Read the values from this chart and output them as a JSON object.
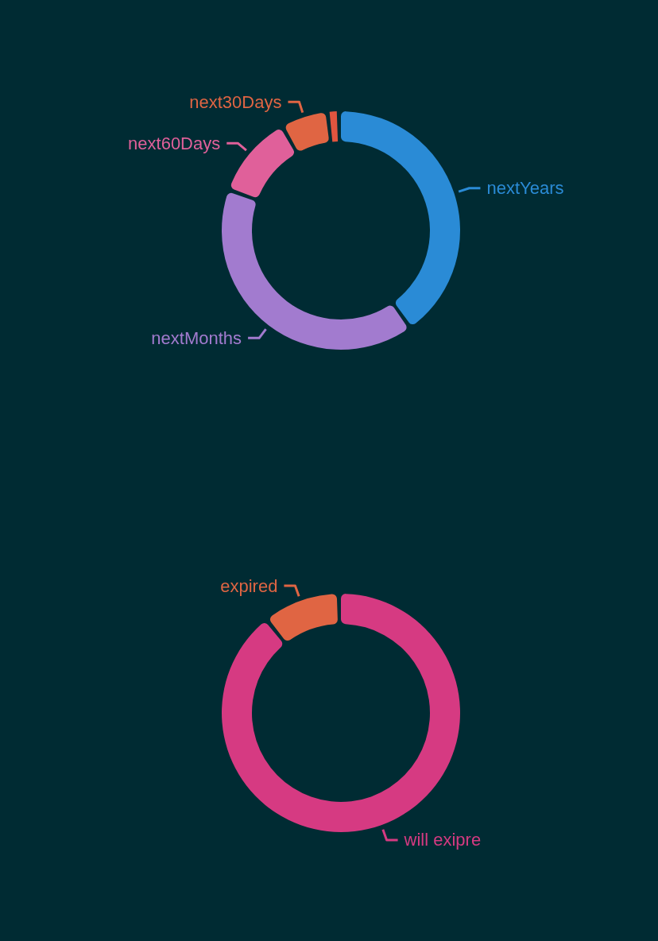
{
  "chart_data": [
    {
      "type": "donut",
      "categories": [
        "nextYears",
        "nextMonths",
        "next60Days",
        "next30Days",
        null
      ],
      "values": [
        41,
        41,
        11,
        6,
        1
      ],
      "colors": [
        "#2a8bd6",
        "#a27bcf",
        "#e0609a",
        "#e06543",
        "#e0553f"
      ]
    },
    {
      "type": "donut",
      "categories": [
        "will exipre",
        "expired"
      ],
      "values": [
        90,
        10
      ],
      "colors": [
        "#d63a82",
        "#e06543"
      ]
    }
  ]
}
